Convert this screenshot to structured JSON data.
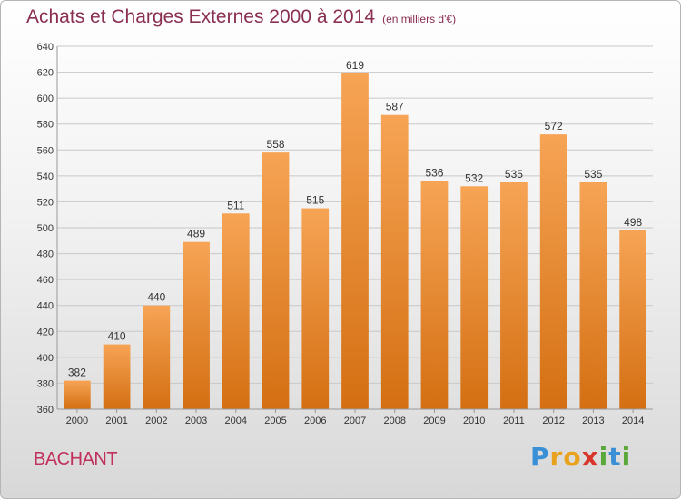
{
  "header": {
    "title": "Achats et Charges Externes 2000 à 2014",
    "unit": "(en milliers d'€)"
  },
  "footer": {
    "place": "BACHANT",
    "logo_letters": [
      {
        "char": "P",
        "color": "#3a8fd6"
      },
      {
        "char": "r",
        "color": "#e9a21b"
      },
      {
        "char": "o",
        "color": "#e9a21b"
      },
      {
        "char": "x",
        "color": "#d8352c"
      },
      {
        "char": "i",
        "color": "#5aa83a"
      },
      {
        "char": "t",
        "color": "#3a8fd6"
      },
      {
        "char": "i",
        "color": "#5aa83a"
      }
    ]
  },
  "chart_data": {
    "type": "bar",
    "title": "Achats et Charges Externes 2000 à 2014",
    "subtitle": "(en milliers d'€)",
    "xlabel": "",
    "ylabel": "",
    "categories": [
      "2000",
      "2001",
      "2002",
      "2003",
      "2004",
      "2005",
      "2006",
      "2007",
      "2008",
      "2009",
      "2010",
      "2011",
      "2012",
      "2013",
      "2014"
    ],
    "values": [
      382,
      410,
      440,
      489,
      511,
      558,
      515,
      619,
      587,
      536,
      532,
      535,
      572,
      535,
      498
    ],
    "ylim": [
      360,
      640
    ],
    "yticks": [
      360,
      380,
      400,
      420,
      440,
      460,
      480,
      500,
      520,
      540,
      560,
      580,
      600,
      620,
      640
    ],
    "grid": true,
    "legend": "none",
    "bar_color_top": "#f6a455",
    "bar_color_bottom": "#d46f12"
  }
}
